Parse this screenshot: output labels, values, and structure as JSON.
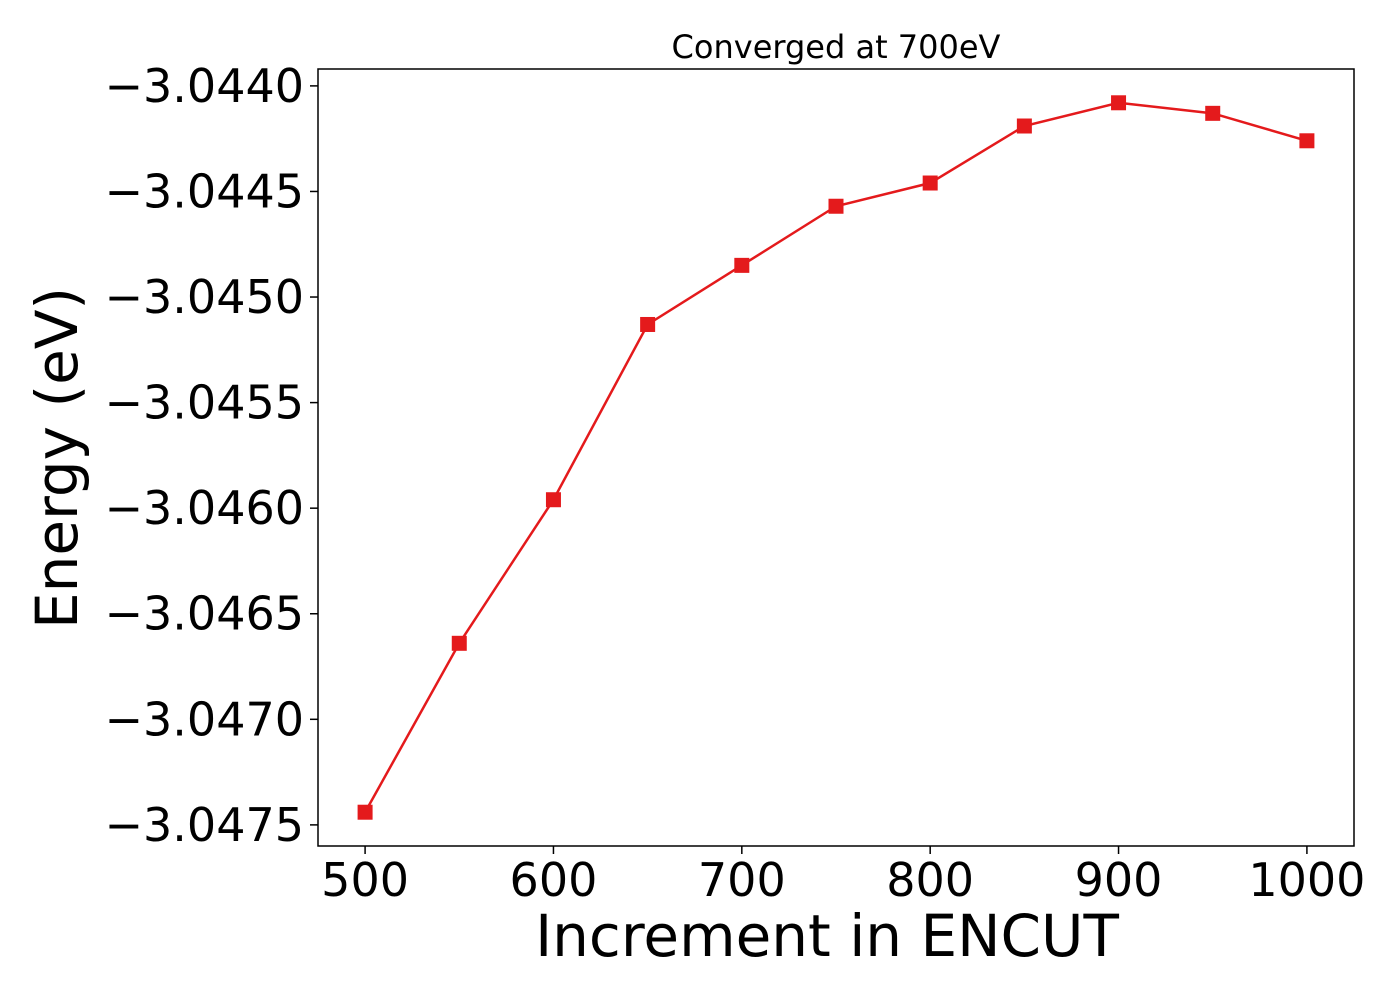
{
  "chart_data": {
    "type": "line",
    "title": "Converged at 700eV",
    "xlabel": "Increment in ENCUT",
    "ylabel": "Energy (eV)",
    "xlim": [
      475,
      1025
    ],
    "ylim": [
      -3.0476,
      -3.04392
    ],
    "x_ticks": [
      500,
      600,
      700,
      800,
      900,
      1000
    ],
    "x_tick_labels": [
      "500",
      "600",
      "700",
      "800",
      "900",
      "1000"
    ],
    "y_ticks": [
      -3.0475,
      -3.047,
      -3.0465,
      -3.046,
      -3.0455,
      -3.045,
      -3.0445,
      -3.044
    ],
    "y_tick_labels": [
      "−3.0475",
      "−3.0470",
      "−3.0465",
      "−3.0460",
      "−3.0455",
      "−3.0450",
      "−3.0445",
      "−3.0440"
    ],
    "grid": false,
    "series": [
      {
        "marker": "square",
        "color": "#e41a1c",
        "x": [
          500,
          550,
          600,
          650,
          700,
          750,
          800,
          850,
          900,
          950,
          1000
        ],
        "y": [
          -3.04744,
          -3.04664,
          -3.04596,
          -3.04513,
          -3.04485,
          -3.04457,
          -3.04446,
          -3.04419,
          -3.04408,
          -3.04413,
          -3.04426
        ]
      }
    ]
  }
}
